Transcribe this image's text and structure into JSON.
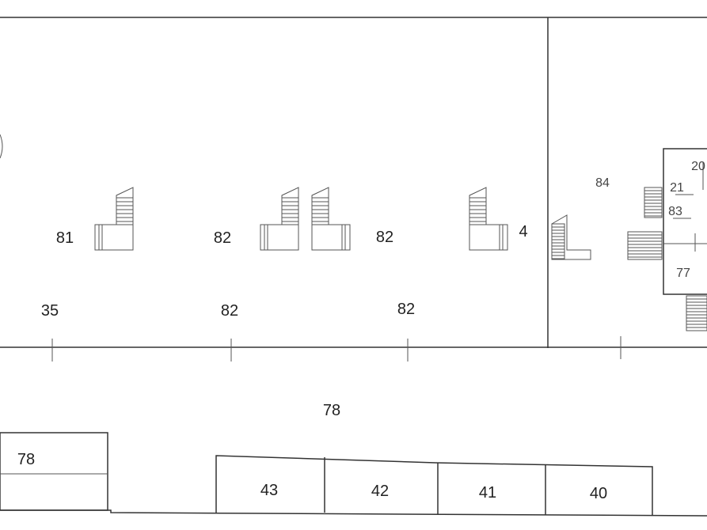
{
  "labels": {
    "room_81": "81",
    "room_82a": "82",
    "room_82b": "82",
    "room_4": "4",
    "dim_35": "35",
    "dim_82a": "82",
    "dim_82b": "82",
    "room_84": "84",
    "room_20": "20",
    "room_21": "21",
    "room_83": "83",
    "room_77": "77",
    "corridor_78": "78",
    "unit_78": "78",
    "unit_43": "43",
    "unit_42": "42",
    "unit_41": "41",
    "unit_40": "40"
  }
}
